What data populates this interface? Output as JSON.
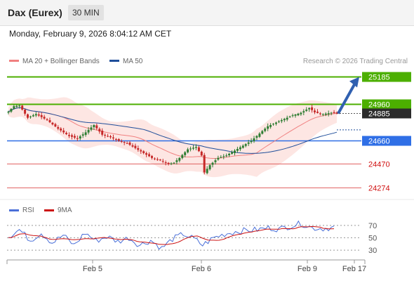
{
  "header": {
    "title": "Dax (Eurex)",
    "timeframe": "30 MIN",
    "datetime": "Monday, February 9, 2026 8:04:12 AM CET"
  },
  "colors": {
    "bull": "#2e7d32",
    "bear": "#c62828",
    "green_level": "#4caf00",
    "blue_level": "#2f6fe6",
    "red_level": "#e06060",
    "ma20": "#f08080",
    "ma50": "#1f4e9a",
    "band_fill": "#fde3e0",
    "rsi": "#4a6fd8",
    "rsi_ma": "#cc1111",
    "current_label": "#2b2b2b",
    "arrow": "#3060b0"
  },
  "chart_data": [
    {
      "type": "candlestick",
      "legend": [
        "MA 20 + Bollinger Bands",
        "MA 50"
      ],
      "watermark": "Research © 2026 Trading Central",
      "x_ticks": [
        "Feb 5",
        "Feb 6",
        "Feb 9",
        "Feb 17"
      ],
      "ylim": [
        24230,
        25240
      ],
      "levels": [
        {
          "label": "25185",
          "value": 25185,
          "kind": "resistance"
        },
        {
          "label": "24960",
          "value": 24960,
          "kind": "resistance"
        },
        {
          "label": "24885",
          "value": 24885,
          "kind": "current"
        },
        {
          "label": "24660",
          "value": 24660,
          "kind": "pivot"
        },
        {
          "label": "24470",
          "value": 24470,
          "kind": "support"
        },
        {
          "label": "24274",
          "value": 24274,
          "kind": "support"
        }
      ],
      "arrow": {
        "from": 24885,
        "to": 25185
      },
      "projected_ma": 24750,
      "keypoints": [
        [
          0,
          24900
        ],
        [
          2,
          24945
        ],
        [
          4,
          24950
        ],
        [
          7,
          24850
        ],
        [
          10,
          24880
        ],
        [
          14,
          24830
        ],
        [
          18,
          24760
        ],
        [
          22,
          24700
        ],
        [
          25,
          24680
        ],
        [
          28,
          24730
        ],
        [
          31,
          24790
        ],
        [
          34,
          24710
        ],
        [
          37,
          24690
        ],
        [
          40,
          24660
        ],
        [
          43,
          24640
        ],
        [
          46,
          24600
        ],
        [
          49,
          24560
        ],
        [
          52,
          24520
        ],
        [
          55,
          24500
        ],
        [
          58,
          24470
        ],
        [
          60,
          24480
        ],
        [
          62,
          24520
        ],
        [
          65,
          24590
        ],
        [
          68,
          24610
        ],
        [
          70,
          24540
        ],
        [
          71,
          24400
        ],
        [
          73,
          24460
        ],
        [
          76,
          24520
        ],
        [
          79,
          24540
        ],
        [
          82,
          24580
        ],
        [
          85,
          24620
        ],
        [
          88,
          24660
        ],
        [
          91,
          24720
        ],
        [
          94,
          24780
        ],
        [
          97,
          24810
        ],
        [
          100,
          24840
        ],
        [
          103,
          24870
        ],
        [
          106,
          24890
        ],
        [
          109,
          24930
        ],
        [
          111,
          24895
        ],
        [
          114,
          24880
        ],
        [
          117,
          24890
        ],
        [
          119,
          24885
        ]
      ]
    },
    {
      "type": "line",
      "legend": [
        "RSI",
        "9MA"
      ],
      "y_ticks": [
        "70",
        "50",
        "30"
      ],
      "ylim": [
        20,
        80
      ],
      "keypoints": [
        [
          0,
          52
        ],
        [
          4,
          63
        ],
        [
          8,
          46
        ],
        [
          12,
          58
        ],
        [
          16,
          42
        ],
        [
          20,
          54
        ],
        [
          24,
          38
        ],
        [
          28,
          58
        ],
        [
          32,
          45
        ],
        [
          36,
          52
        ],
        [
          40,
          44
        ],
        [
          44,
          50
        ],
        [
          48,
          38
        ],
        [
          52,
          46
        ],
        [
          56,
          33
        ],
        [
          60,
          48
        ],
        [
          64,
          56
        ],
        [
          68,
          48
        ],
        [
          71,
          38
        ],
        [
          75,
          50
        ],
        [
          79,
          56
        ],
        [
          83,
          60
        ],
        [
          87,
          62
        ],
        [
          91,
          63
        ],
        [
          95,
          66
        ],
        [
          99,
          64
        ],
        [
          103,
          69
        ],
        [
          107,
          73
        ],
        [
          111,
          66
        ],
        [
          115,
          65
        ],
        [
          119,
          67
        ]
      ]
    }
  ]
}
